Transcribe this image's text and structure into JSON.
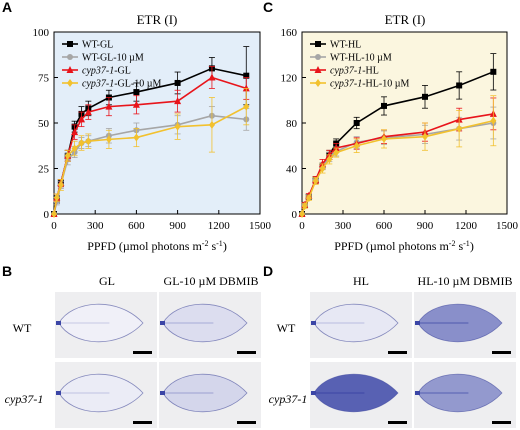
{
  "colors": {
    "wt": "#000000",
    "wt_10um": "#a6a6a6",
    "cyp": "#e8141b",
    "cyp_10um": "#f2c12e",
    "panel_a_bg": "#e3eef9",
    "panel_c_bg": "#fbf6df",
    "leaf_stain": "#3b45a6",
    "photo_bg": "#eeeef0"
  },
  "panels": {
    "a": "A",
    "b": "B",
    "c": "C",
    "d": "D"
  },
  "chart_data": [
    {
      "type": "line",
      "panel": "A",
      "title": "ETR (I)",
      "xlabel": "PPFD (µmol photons m⁻² s⁻¹)",
      "ylabel": "",
      "xlim": [
        0,
        1500
      ],
      "ylim": [
        0,
        100
      ],
      "xticks": [
        "0",
        "300",
        "600",
        "900",
        "1200",
        "1500"
      ],
      "yticks": [
        "0",
        "25",
        "50",
        "75",
        "100"
      ],
      "grid": false,
      "legend_position": "top-left",
      "x": [
        0,
        20,
        50,
        100,
        150,
        200,
        250,
        400,
        600,
        900,
        1150,
        1400
      ],
      "series": [
        {
          "name_plain": "WT-GL",
          "color": "wt",
          "marker": "square",
          "values": [
            0,
            8,
            17,
            32,
            48,
            55,
            58,
            64,
            67,
            72,
            80,
            76
          ],
          "err": [
            0,
            2,
            2,
            3,
            3,
            4,
            4,
            4,
            5,
            6,
            6,
            16
          ]
        },
        {
          "name_plain": "WT-GL-10 µM",
          "color": "wt_10um",
          "marker": "circle",
          "values": [
            0,
            7,
            16,
            30,
            34,
            39,
            40,
            43,
            46,
            49,
            54,
            52
          ],
          "err": [
            0,
            2,
            2,
            3,
            3,
            3,
            3,
            4,
            4,
            5,
            5,
            6
          ]
        },
        {
          "name_italic": "cyp37-1",
          "name_suffix": "-GL",
          "color": "cyp",
          "marker": "triangle",
          "values": [
            0,
            9,
            17,
            32,
            45,
            52,
            56,
            59,
            60,
            62,
            75,
            69
          ],
          "err": [
            0,
            2,
            2,
            3,
            4,
            4,
            4,
            5,
            5,
            6,
            6,
            6
          ]
        },
        {
          "name_italic": "cyp37-1",
          "name_suffix": "-GL-10 µM",
          "color": "cyp_10um",
          "marker": "diamond",
          "values": [
            0,
            9,
            16,
            32,
            36,
            39,
            40,
            41,
            42,
            48,
            49,
            59
          ],
          "err": [
            0,
            2,
            3,
            3,
            4,
            4,
            4,
            5,
            5,
            7,
            15,
            10
          ]
        }
      ]
    },
    {
      "type": "line",
      "panel": "C",
      "title": "ETR (I)",
      "xlabel": "PPFD (µmol photons m⁻² s⁻¹)",
      "ylabel": "",
      "xlim": [
        0,
        1500
      ],
      "ylim": [
        0,
        160
      ],
      "xticks": [
        "0",
        "300",
        "600",
        "900",
        "1200",
        "1500"
      ],
      "yticks": [
        "0",
        "40",
        "80",
        "120",
        "160"
      ],
      "grid": false,
      "legend_position": "top-left",
      "x": [
        0,
        20,
        50,
        100,
        150,
        200,
        250,
        400,
        600,
        900,
        1150,
        1400
      ],
      "series": [
        {
          "name_plain": "WT-HL",
          "color": "wt",
          "marker": "square",
          "values": [
            0,
            8,
            15,
            30,
            42,
            52,
            62,
            80,
            95,
            103,
            113,
            125
          ],
          "err": [
            0,
            2,
            2,
            3,
            3,
            4,
            4,
            5,
            8,
            10,
            12,
            16
          ]
        },
        {
          "name_plain": "WT-HL-10 µM",
          "color": "wt_10um",
          "marker": "circle",
          "values": [
            0,
            8,
            15,
            30,
            42,
            50,
            55,
            63,
            67,
            70,
            75,
            80
          ],
          "err": [
            0,
            2,
            2,
            3,
            3,
            4,
            4,
            5,
            6,
            8,
            10,
            14
          ]
        },
        {
          "name_italic": "cyp37-1",
          "name_suffix": "-HL",
          "color": "cyp",
          "marker": "triangle",
          "values": [
            0,
            8,
            16,
            30,
            44,
            52,
            58,
            62,
            68,
            72,
            83,
            88
          ],
          "err": [
            0,
            2,
            2,
            3,
            4,
            4,
            4,
            5,
            6,
            8,
            10,
            14
          ]
        },
        {
          "name_italic": "cyp37-1",
          "name_suffix": "-HL-10 µM",
          "color": "cyp_10um",
          "marker": "diamond",
          "values": [
            0,
            7,
            14,
            29,
            40,
            48,
            54,
            60,
            66,
            68,
            75,
            82
          ],
          "err": [
            0,
            2,
            2,
            3,
            4,
            4,
            4,
            6,
            8,
            12,
            16,
            22
          ]
        }
      ]
    }
  ],
  "photos": {
    "b": {
      "columns": [
        "GL",
        "GL-10 µM DBMIB"
      ],
      "rows": [
        "WT",
        "cyp37-1"
      ],
      "stain": [
        [
          0.08,
          0.18
        ],
        [
          0.1,
          0.22
        ]
      ]
    },
    "d": {
      "columns": [
        "HL",
        "HL-10 µM DBMIB"
      ],
      "rows": [
        "WT",
        "cyp37-1"
      ],
      "stain": [
        [
          0.12,
          0.6
        ],
        [
          0.85,
          0.55
        ]
      ]
    }
  }
}
